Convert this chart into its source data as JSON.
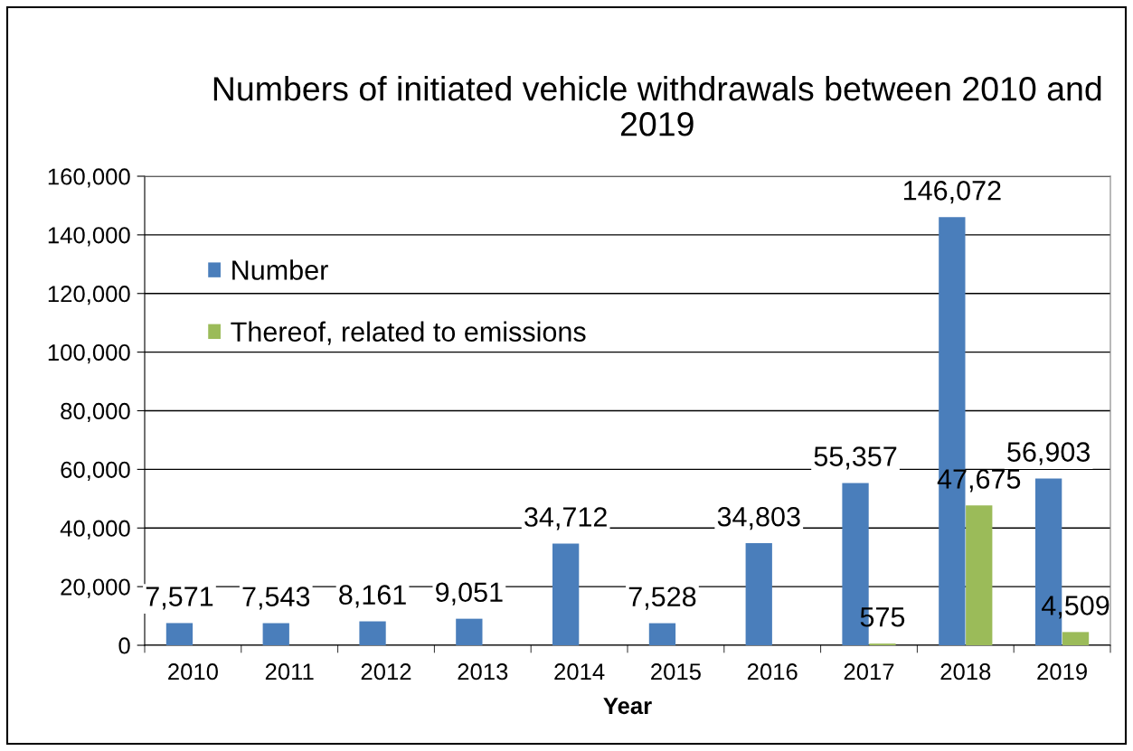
{
  "chart_data": {
    "type": "bar",
    "title": "Numbers of initiated vehicle withdrawals between 2010 and 2019",
    "xlabel": "Year",
    "categories": [
      "2010",
      "2011",
      "2012",
      "2013",
      "2014",
      "2015",
      "2016",
      "2017",
      "2018",
      "2019"
    ],
    "series": [
      {
        "name": "Number",
        "color": "#4a7ebb",
        "values": [
          7571,
          7543,
          8161,
          9051,
          34712,
          7528,
          34803,
          55357,
          146072,
          56903
        ],
        "value_labels": [
          "7,571",
          "7,543",
          "8,161",
          "9,051",
          "34,712",
          "7,528",
          "34,803",
          "55,357",
          "146,072",
          "56,903"
        ]
      },
      {
        "name": "Thereof, related to emissions",
        "color": "#9bbb59",
        "values": [
          null,
          null,
          null,
          null,
          null,
          null,
          null,
          575,
          47675,
          4509
        ],
        "value_labels": [
          null,
          null,
          null,
          null,
          null,
          null,
          null,
          "575",
          "47,675",
          "4,509"
        ]
      }
    ],
    "ylim": [
      0,
      160000
    ],
    "yticks": [
      0,
      {
        "value": 20000,
        "label": "20,000"
      },
      {
        "value": 40000,
        "label": "40,000"
      },
      {
        "value": 60000,
        "label": "60,000"
      },
      {
        "value": 80000,
        "label": "80,000"
      },
      {
        "value": 100000,
        "label": "100,000"
      },
      {
        "value": 120000,
        "label": "120,000"
      },
      {
        "value": 140000,
        "label": "140,000"
      },
      {
        "value": 160000,
        "label": "160,000"
      }
    ],
    "grid": "y",
    "legend": "top left"
  }
}
